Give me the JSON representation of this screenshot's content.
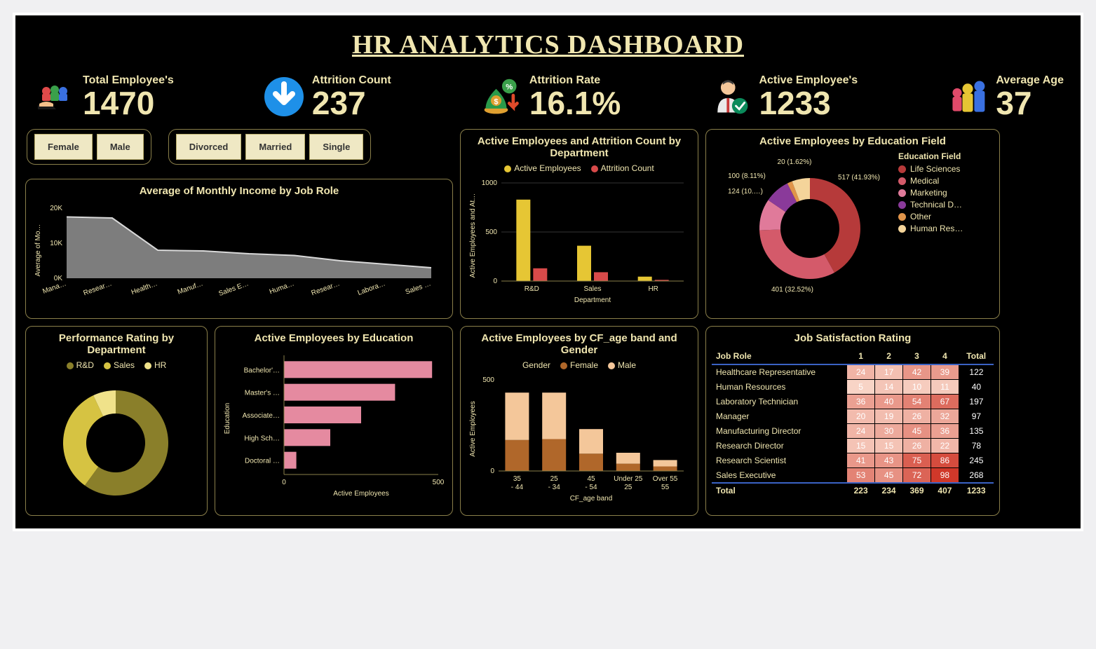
{
  "title": "HR ANALYTICS DASHBOARD",
  "colors": {
    "accent": "#f0e6b0",
    "card_border": "#8a7f4a",
    "button_bg": "#efe8c4"
  },
  "kpi": {
    "total": {
      "label": "Total Employee's",
      "value": "1470"
    },
    "attrition": {
      "label": "Attrition Count",
      "value": "237"
    },
    "rate": {
      "label": "Attrition Rate",
      "value": "16.1%"
    },
    "active": {
      "label": "Active Employee's",
      "value": "1233"
    },
    "age": {
      "label": "Average Age",
      "value": "37"
    }
  },
  "filters": {
    "gender": [
      "Female",
      "Male"
    ],
    "marital": [
      "Divorced",
      "Married",
      "Single"
    ]
  },
  "income_chart": {
    "title": "Average of Monthly Income by Job Role",
    "y_title": "Average of Mo…",
    "type": "area",
    "categories": [
      "Mana…",
      "Resear…",
      "Health…",
      "Manuf…",
      "Sales E…",
      "Huma…",
      "Resear…",
      "Labora…",
      "Sales …"
    ],
    "values": [
      17500,
      17200,
      8000,
      7800,
      7000,
      6500,
      5000,
      4000,
      3000
    ],
    "ylim": [
      0,
      20000
    ],
    "yticks": [
      "0K",
      "10K",
      "20K"
    ],
    "area_color": "#7d7d7d",
    "line_color": "#d9d9d9"
  },
  "dept_chart": {
    "title": "Active Employees and Attrition Count by Department",
    "legend": [
      {
        "label": "Active Employees",
        "color": "#e6c634"
      },
      {
        "label": "Attrition Count",
        "color": "#d84a4a"
      }
    ],
    "x_title": "Department",
    "y_title": "Active Employees and At…",
    "categories": [
      "R&D",
      "Sales",
      "HR"
    ],
    "series": {
      "active": [
        830,
        360,
        45
      ],
      "attrition": [
        130,
        90,
        12
      ]
    },
    "ylim": [
      0,
      1000
    ],
    "yticks": [
      0,
      500,
      1000
    ]
  },
  "edu_field_donut": {
    "title": "Active Employees by Education Field",
    "legend_title": "Education Field",
    "total": 1233,
    "slices": [
      {
        "label": "Life Sciences",
        "value": 517,
        "pct": "41.93%",
        "color": "#b63a3a"
      },
      {
        "label": "Medical",
        "value": 401,
        "pct": "32.52%",
        "color": "#d45a6a"
      },
      {
        "label": "Marketing",
        "value": 124,
        "pct": "10.…",
        "color": "#e07a9a"
      },
      {
        "label": "Technical D…",
        "value": 100,
        "pct": "8.11%",
        "color": "#8a3a9a"
      },
      {
        "label": "Other",
        "value": 20,
        "pct": "1.62%",
        "color": "#e0944a"
      },
      {
        "label": "Human Res…",
        "value": 71,
        "pct": "",
        "color": "#f4d49a"
      }
    ],
    "callouts": [
      "517 (41.93%)",
      "401 (32.52%)",
      "124 (10.…)",
      "100 (8.11%)",
      "20 (1.62%)"
    ]
  },
  "perf_donut": {
    "title": "Performance Rating by Department",
    "legend": [
      {
        "label": "R&D",
        "color": "#8a7f2a"
      },
      {
        "label": "Sales",
        "color": "#d6c342"
      },
      {
        "label": "HR",
        "color": "#f0e28a"
      }
    ],
    "values": [
      60,
      33,
      7
    ]
  },
  "edu_bar": {
    "title": "Active Employees by Education",
    "x_title": "Active Employees",
    "y_title": "Education",
    "categories": [
      "Bachelor'…",
      "Master's …",
      "Associate…",
      "High Sch…",
      "Doctoral …"
    ],
    "values": [
      480,
      360,
      250,
      150,
      40
    ],
    "xlim": [
      0,
      500
    ],
    "xticks": [
      0,
      500
    ],
    "bar_color": "#e58aa0"
  },
  "age_gender": {
    "title": "Active Employees by CF_age band and Gender",
    "legend_title": "Gender",
    "legend": [
      {
        "label": "Female",
        "color": "#b0672a"
      },
      {
        "label": "Male",
        "color": "#f4c79a"
      }
    ],
    "x_title": "CF_age band",
    "y_title": "Active Employees",
    "categories": [
      "35 - 44",
      "25 - 34",
      "45 - 54",
      "Under 25",
      "Over 55"
    ],
    "female": [
      170,
      175,
      95,
      40,
      25
    ],
    "male": [
      260,
      255,
      135,
      60,
      35
    ],
    "ylim": [
      0,
      500
    ],
    "yticks": [
      0,
      500
    ]
  },
  "satisfaction": {
    "title": "Job Satisfaction Rating",
    "columns": [
      "Job Role",
      "1",
      "2",
      "3",
      "4",
      "Total"
    ],
    "colors_scale": {
      "low": "#f8d4c6",
      "mid": "#e98a7a",
      "high": "#d0382a"
    },
    "rows": [
      {
        "role": "Healthcare Representative",
        "v": [
          24,
          17,
          42,
          39
        ],
        "t": 122
      },
      {
        "role": "Human Resources",
        "v": [
          5,
          14,
          10,
          11
        ],
        "t": 40
      },
      {
        "role": "Laboratory Technician",
        "v": [
          36,
          40,
          54,
          67
        ],
        "t": 197
      },
      {
        "role": "Manager",
        "v": [
          20,
          19,
          26,
          32
        ],
        "t": 97
      },
      {
        "role": "Manufacturing Director",
        "v": [
          24,
          30,
          45,
          36
        ],
        "t": 135
      },
      {
        "role": "Research Director",
        "v": [
          15,
          15,
          26,
          22
        ],
        "t": 78
      },
      {
        "role": "Research Scientist",
        "v": [
          41,
          43,
          75,
          86
        ],
        "t": 245
      },
      {
        "role": "Sales Executive",
        "v": [
          53,
          45,
          72,
          98
        ],
        "t": 268
      }
    ],
    "totals": {
      "label": "Total",
      "v": [
        223,
        234,
        369,
        407
      ],
      "t": 1233
    }
  }
}
